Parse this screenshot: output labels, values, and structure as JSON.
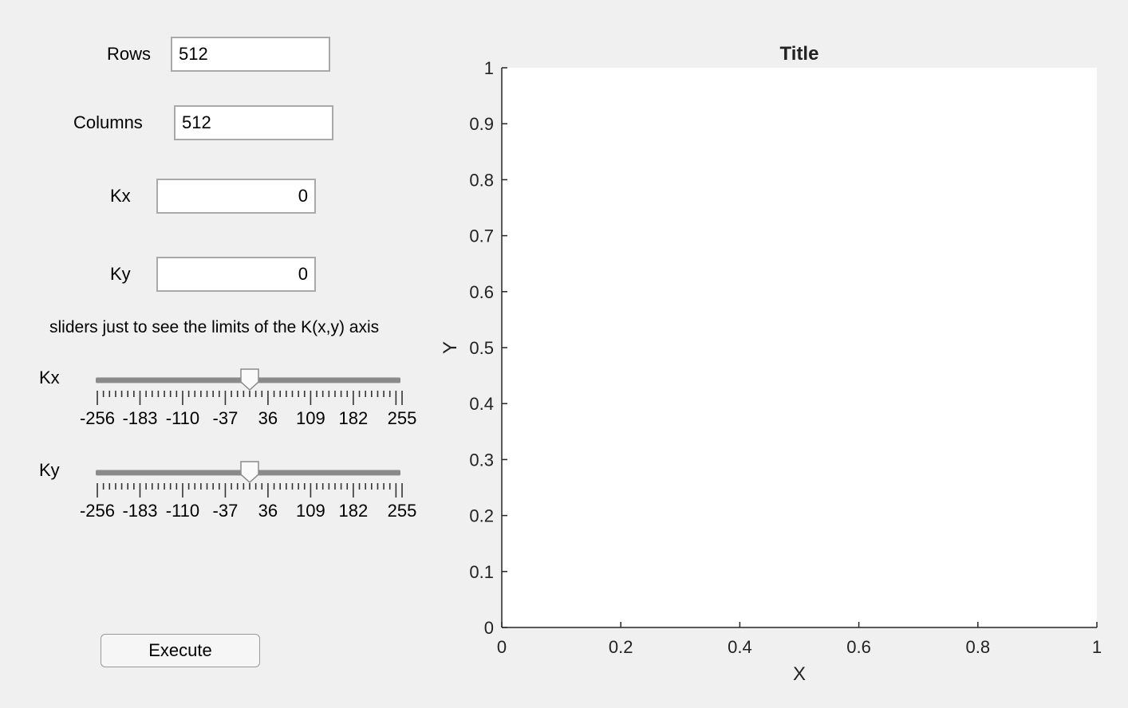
{
  "form": {
    "rows": {
      "label": "Rows",
      "value": "512"
    },
    "columns": {
      "label": "Columns",
      "value": "512"
    },
    "kx": {
      "label": "Kx",
      "value": "0"
    },
    "ky": {
      "label": "Ky",
      "value": "0"
    }
  },
  "sliders": {
    "note": "sliders just to see the limits of the K(x,y) axis",
    "min": -256,
    "max": 255,
    "tick_labels": [
      "-256",
      "-183",
      "-110",
      "-37",
      "36",
      "109",
      "182",
      "255"
    ],
    "kx": {
      "label": "Kx",
      "value": 0
    },
    "ky": {
      "label": "Ky",
      "value": 0
    }
  },
  "execute_button": {
    "label": "Execute"
  },
  "chart_data": {
    "type": "line",
    "title": "Title",
    "xlabel": "X",
    "ylabel": "Y",
    "xlim": [
      0,
      1
    ],
    "ylim": [
      0,
      1
    ],
    "xticks": [
      "0",
      "0.2",
      "0.4",
      "0.6",
      "0.8",
      "1"
    ],
    "yticks": [
      "0",
      "0.1",
      "0.2",
      "0.3",
      "0.4",
      "0.5",
      "0.6",
      "0.7",
      "0.8",
      "0.9",
      "1"
    ],
    "series": [],
    "grid": false
  }
}
